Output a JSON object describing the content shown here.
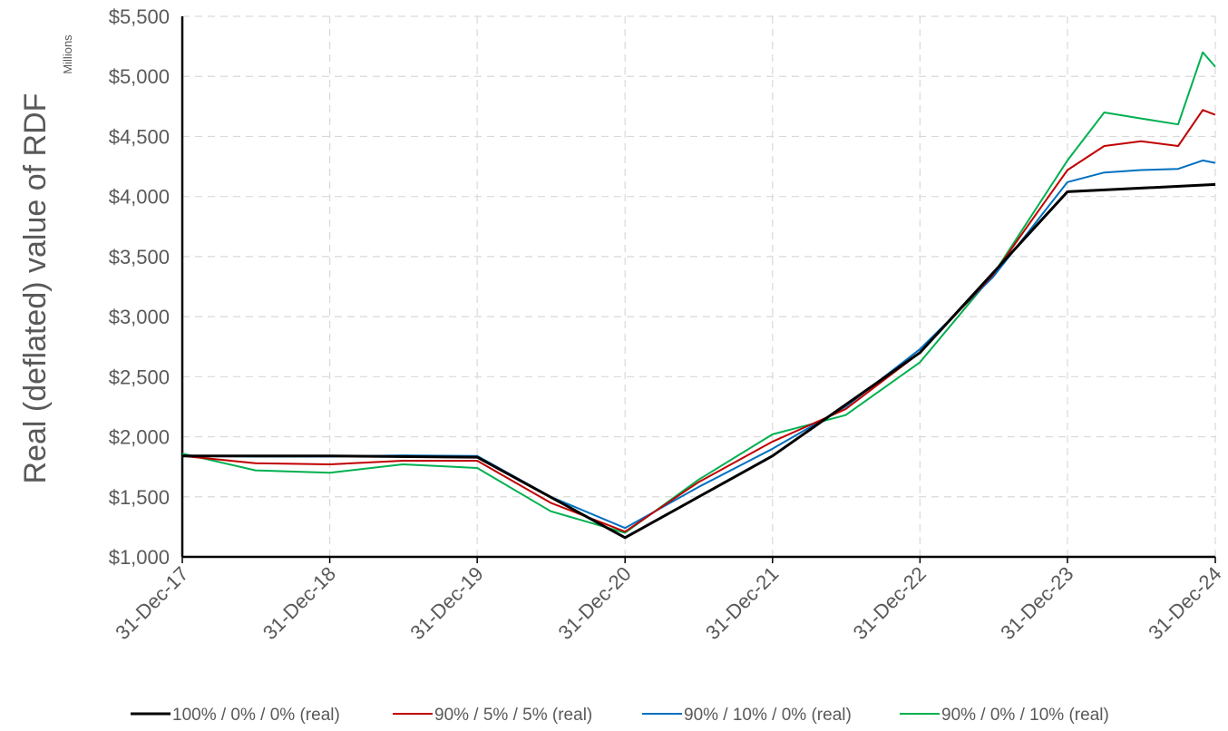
{
  "chart_data": {
    "type": "line",
    "ylabel": "Real (deflated) value of RDF",
    "unit_label": "Millions",
    "ylim": [
      1000,
      5500
    ],
    "y_ticks": [
      "$1,000",
      "$1,500",
      "$2,000",
      "$2,500",
      "$3,000",
      "$3,500",
      "$4,000",
      "$4,500",
      "$5,000",
      "$5,500"
    ],
    "x_ticks": [
      "31-Dec-17",
      "31-Dec-18",
      "31-Dec-19",
      "31-Dec-20",
      "31-Dec-21",
      "31-Dec-22",
      "31-Dec-23",
      "31-Dec-24"
    ],
    "grid": true,
    "legend_position": "bottom",
    "series": [
      {
        "name": "100% / 0% / 0% (real)",
        "color": "#000000",
        "x": [
          "31-Dec-17",
          "31-Dec-18",
          "31-Dec-19",
          "31-Dec-20",
          "31-Dec-21",
          "31-Dec-22",
          "31-Dec-23",
          "31-Dec-24"
        ],
        "values": [
          1840,
          1840,
          1830,
          1160,
          1840,
          2700,
          4040,
          4100
        ]
      },
      {
        "name": "90% / 5% / 5% (real)",
        "color": "#c00000",
        "x": [
          "31-Dec-17",
          "30-Jun-18",
          "31-Dec-18",
          "30-Jun-19",
          "31-Dec-19",
          "30-Jun-20",
          "31-Dec-20",
          "30-Jun-21",
          "31-Dec-21",
          "30-Jun-22",
          "31-Dec-22",
          "30-Jun-23",
          "31-Dec-23",
          "31-Mar-24",
          "30-Jun-24",
          "30-Sep-24",
          "30-Nov-24",
          "31-Dec-24"
        ],
        "values": [
          1840,
          1780,
          1770,
          1800,
          1800,
          1450,
          1210,
          1620,
          1960,
          2230,
          2700,
          3350,
          4220,
          4420,
          4460,
          4420,
          4720,
          4680
        ]
      },
      {
        "name": "90% / 10% / 0% (real)",
        "color": "#0070c0",
        "x": [
          "31-Dec-17",
          "30-Jun-18",
          "31-Dec-18",
          "30-Jun-19",
          "31-Dec-19",
          "30-Jun-20",
          "31-Dec-20",
          "30-Jun-21",
          "31-Dec-21",
          "30-Jun-22",
          "31-Dec-22",
          "30-Jun-23",
          "31-Dec-23",
          "31-Mar-24",
          "30-Jun-24",
          "30-Sep-24",
          "30-Nov-24",
          "31-Dec-24"
        ],
        "values": [
          1840,
          1835,
          1835,
          1845,
          1840,
          1500,
          1240,
          1580,
          1900,
          2250,
          2730,
          3330,
          4120,
          4200,
          4220,
          4230,
          4300,
          4280
        ]
      },
      {
        "name": "90% / 0% / 10% (real)",
        "color": "#00b050",
        "x": [
          "31-Dec-17",
          "30-Jun-18",
          "31-Dec-18",
          "30-Jun-19",
          "31-Dec-19",
          "30-Jun-20",
          "31-Dec-20",
          "30-Jun-21",
          "31-Dec-21",
          "30-Jun-22",
          "31-Dec-22",
          "30-Jun-23",
          "31-Dec-23",
          "31-Mar-24",
          "30-Jun-24",
          "30-Sep-24",
          "30-Nov-24",
          "31-Dec-24"
        ],
        "values": [
          1860,
          1720,
          1700,
          1770,
          1740,
          1380,
          1200,
          1640,
          2020,
          2180,
          2620,
          3350,
          4300,
          4700,
          4650,
          4600,
          5200,
          5080
        ]
      }
    ]
  }
}
